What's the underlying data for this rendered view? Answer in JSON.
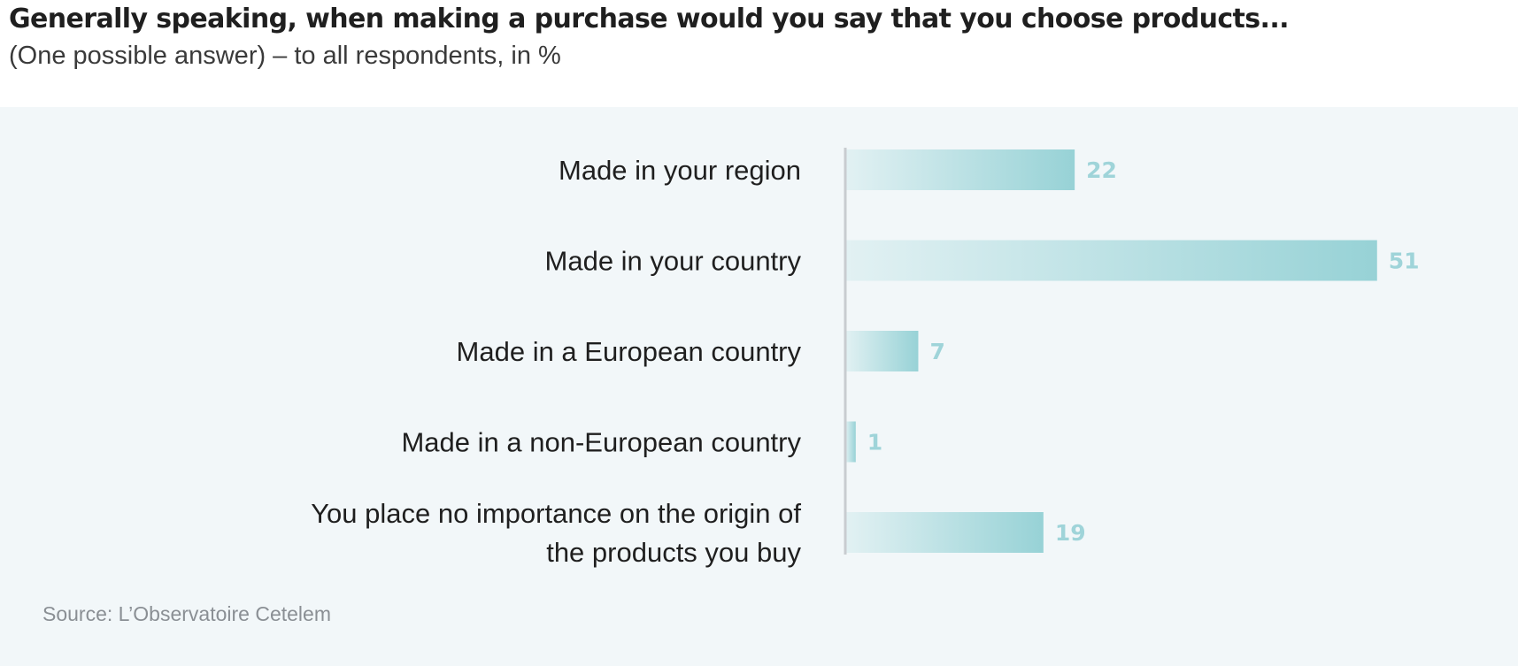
{
  "chart_data": {
    "type": "bar",
    "orientation": "horizontal",
    "title": "Generally speaking, when making a purchase would you say that you choose products...",
    "subtitle": "(One possible answer) – to all respondents, in %",
    "categories": [
      [
        "Made in your region"
      ],
      [
        "Made in your country"
      ],
      [
        "Made in a European country"
      ],
      [
        "Made in a non-European country"
      ],
      [
        "You place no importance on the origin of",
        "the products you buy"
      ]
    ],
    "values": [
      22,
      51,
      7,
      1,
      19
    ],
    "xlim": [
      0,
      60
    ],
    "grid": false,
    "legend": "none",
    "colors": {
      "bar_start": "#e2f1f3",
      "bar_end": "#97d2d6",
      "value_label": "#9fd4d9",
      "axis": "#c8ccd0",
      "panel_bg": "#f2f7f9"
    },
    "source": "Source: L’Observatoire Cetelem"
  }
}
